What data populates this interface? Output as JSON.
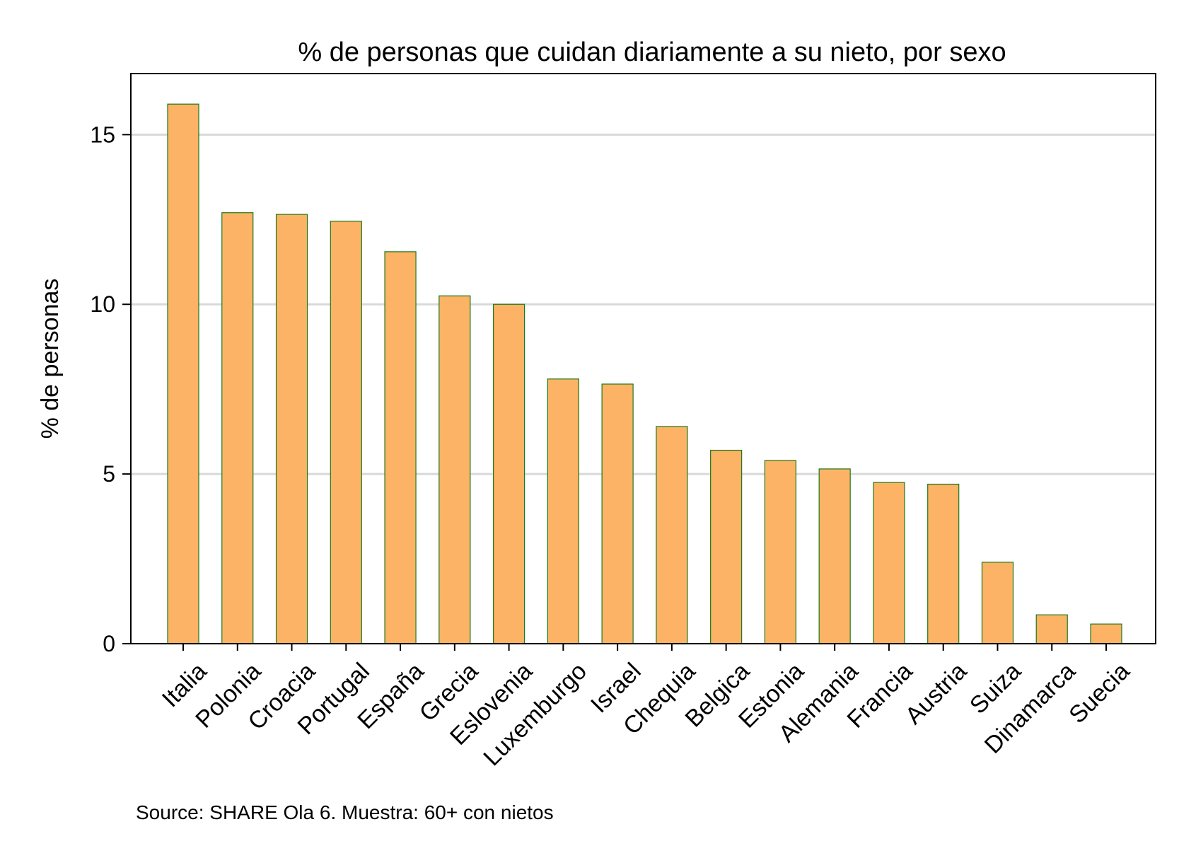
{
  "chart_data": {
    "type": "bar",
    "title": "% de personas que cuidan diariamente a su nieto, por sexo",
    "ylabel": "% de personas",
    "xlabel": "",
    "ylim": [
      0,
      16.8
    ],
    "yticks": [
      0,
      5,
      10,
      15
    ],
    "grid": true,
    "categories": [
      "Italia",
      "Polonia",
      "Croacia",
      "Portugal",
      "España",
      "Grecia",
      "Eslovenia",
      "Luxemburgo",
      "Israel",
      "Chequia",
      "Belgica",
      "Estonia",
      "Alemania",
      "Francia",
      "Austria",
      "Suiza",
      "Dinamarca",
      "Suecia"
    ],
    "values": [
      15.9,
      12.7,
      12.65,
      12.45,
      11.55,
      10.25,
      10.0,
      7.8,
      7.65,
      6.4,
      5.7,
      5.4,
      5.15,
      4.75,
      4.7,
      2.4,
      0.85,
      0.58
    ],
    "note": "Source: SHARE Ola 6. Muestra: 60+ con nietos",
    "colors": {
      "bar_fill": "#fdb366",
      "bar_stroke": "#1a7a1a",
      "grid": "#d9d9d9",
      "axis": "#000000"
    }
  }
}
